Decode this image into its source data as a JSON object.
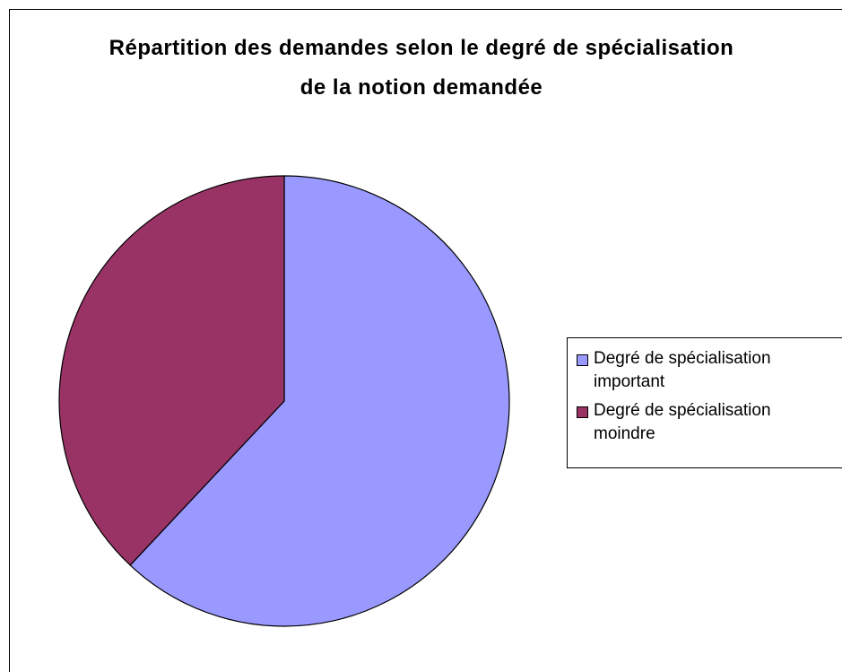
{
  "chart_data": {
    "type": "pie",
    "title": "Répartition des demandes selon le degré de spécialisation de la notion demandée",
    "categories": [
      "Degré de spécialisation important",
      "Degré de spécialisation moindre"
    ],
    "values": [
      62,
      38
    ],
    "colors": [
      "#9999ff",
      "#993366"
    ],
    "legend": "right"
  }
}
